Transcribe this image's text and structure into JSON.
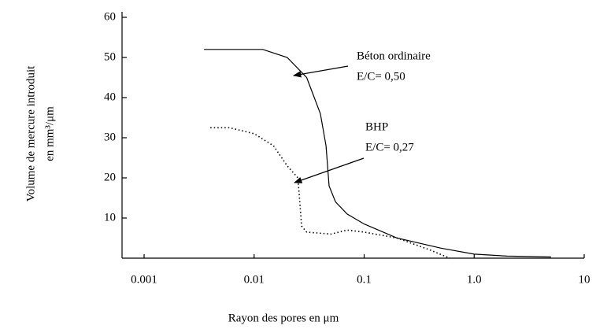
{
  "chart_data": {
    "type": "line",
    "xlabel": "Rayon des pores en μm",
    "ylabel": [
      "Volume de mercure introduit",
      "en mm³/μm"
    ],
    "xscale": "log",
    "xlim": [
      0.00063,
      10
    ],
    "xticks": [
      0.001,
      0.01,
      0.1,
      {
        "value": 1,
        "label": "1.0"
      },
      10
    ],
    "ylim": [
      0,
      60
    ],
    "yticks": [
      10,
      20,
      30,
      40,
      50,
      60
    ],
    "series": [
      {
        "name": "Béton ordinaire",
        "color": "#000000",
        "dash": "solid",
        "x": [
          0.0035,
          0.012,
          0.02,
          0.03,
          0.04,
          0.045,
          0.048,
          0.055,
          0.07,
          0.1,
          0.2,
          0.5,
          1.0,
          2,
          5
        ],
        "values": [
          52,
          52,
          50,
          45,
          36,
          28,
          18,
          14,
          11,
          8.5,
          5,
          2.5,
          1,
          0.5,
          0.3
        ]
      },
      {
        "name": "BHP",
        "color": "#000000",
        "dash": "dotted",
        "x": [
          0.004,
          0.006,
          0.01,
          0.015,
          0.02,
          0.025,
          0.027,
          0.03,
          0.05,
          0.07,
          0.1,
          0.2,
          0.4,
          0.6
        ],
        "values": [
          32.5,
          32.5,
          31,
          28,
          23,
          20,
          8,
          6.5,
          6,
          7,
          6.5,
          5,
          2,
          0
        ]
      }
    ],
    "annotations": [
      {
        "text": [
          "Béton ordinaire",
          "E/C= 0,50"
        ]
      },
      {
        "text": [
          "BHP",
          "E/C= 0,27"
        ]
      }
    ]
  }
}
